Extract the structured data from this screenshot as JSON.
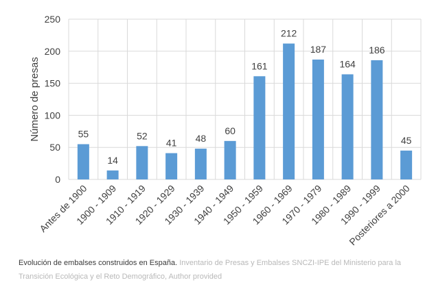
{
  "chart_data": {
    "type": "bar",
    "categories": [
      "Antes de 1900",
      "1900 - 1909",
      "1910 - 1919",
      "1920 - 1929",
      "1930 - 1939",
      "1940 - 1949",
      "1950 - 1959",
      "1960 - 1969",
      "1970 - 1979",
      "1980 - 1989",
      "1990 - 1999",
      "Posteriores a 2000"
    ],
    "values": [
      55,
      14,
      52,
      41,
      48,
      60,
      161,
      212,
      187,
      164,
      186,
      45
    ],
    "data_labels": [
      "55",
      "14",
      "52",
      "41",
      "48",
      "60",
      "161",
      "212",
      "187",
      "164",
      "186",
      "45"
    ],
    "title": "",
    "xlabel": "",
    "ylabel": "Número de presas",
    "ylim": [
      0,
      250
    ],
    "yticks": [
      0,
      50,
      100,
      150,
      200,
      250
    ],
    "ytick_labels": [
      "0",
      "50",
      "100",
      "150",
      "200",
      "250"
    ],
    "grid": true,
    "bar_color": "#5b9bd5"
  },
  "caption": {
    "text": "Evolución de embalses construidos en España.",
    "credit": "Inventario de Presas y Embalses SNCZI-IPE del Ministerio para la Transición Ecológica y el Reto Demográfico, Author provided"
  }
}
